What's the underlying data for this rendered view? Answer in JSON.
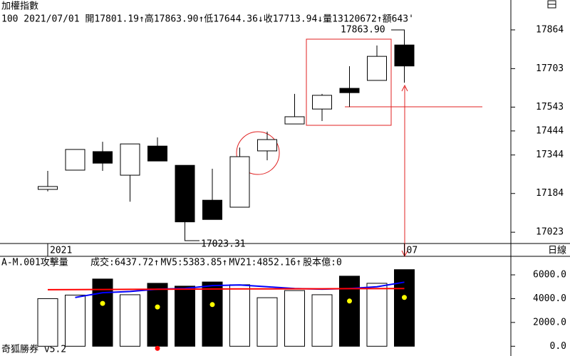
{
  "chart_data": [
    {
      "type": "candlestick",
      "title": "加權指數",
      "info": "100 2021/07/01 開17801.19↑高17863.90↑低17644.36↓收17713.94↓量13120672↑額643'",
      "categories": [
        "2021",
        null,
        null,
        null,
        null,
        null,
        null,
        null,
        null,
        null,
        null,
        null,
        null,
        "07"
      ],
      "open": [
        17201,
        17281,
        17358,
        17260,
        17381,
        17301,
        17156,
        17127,
        17361,
        17473,
        17535,
        17621,
        17654,
        17801.19
      ],
      "high": [
        17278,
        17367,
        17399,
        17390,
        17417,
        17301,
        17287,
        17375,
        17441,
        17598,
        17598,
        17713,
        17799,
        17863.9
      ],
      "low": [
        17193,
        17281,
        17278,
        17150,
        17319,
        17023.31,
        17076,
        17127,
        17322,
        17473,
        17485,
        17544,
        17654,
        17644.36
      ],
      "close": [
        17213,
        17367,
        17310,
        17390,
        17319,
        17066,
        17076,
        17337,
        17408,
        17503,
        17592,
        17603,
        17754,
        17713.94
      ],
      "annotations": [
        "17863.90",
        "17023.31"
      ],
      "period": "日線",
      "ylim": [
        16982,
        17929
      ],
      "yticks": [
        17864,
        17703,
        17543,
        17444,
        17344,
        17184,
        17023
      ]
    },
    {
      "type": "bar",
      "title": "A-M.001攻擊量",
      "series": [
        {
          "name": "成交:6437.72↑",
          "color": "#008000",
          "values": [
            4000,
            4300,
            5650,
            4330,
            5290,
            5050,
            5400,
            5170,
            4080,
            4680,
            4330,
            5890,
            5290,
            6437.72
          ]
        },
        {
          "name": "MV5:5383.85↑",
          "color": "#0000ff",
          "values": [
            null,
            4100,
            4500,
            4600,
            4800,
            4860,
            5100,
            5150,
            5000,
            4850,
            4800,
            4850,
            5000,
            5383.85
          ]
        },
        {
          "name": "MV21:4852.16↑",
          "color": "#ff0000",
          "values": [
            4750,
            4760,
            4770,
            4780,
            4790,
            4800,
            4810,
            4820,
            4820,
            4830,
            4830,
            4840,
            4845,
            4852.16
          ]
        }
      ],
      "note": {
        "text": "股本億:0",
        "color": "#ff00ff"
      },
      "markers": [
        {
          "color": "#ffff00",
          "values": [
            null,
            null,
            3600,
            null,
            3300,
            null,
            3500,
            null,
            null,
            null,
            null,
            3800,
            null,
            4100
          ]
        },
        {
          "color": "#ff0000",
          "values": [
            null,
            null,
            null,
            null,
            -180,
            null,
            null,
            null,
            null,
            null,
            null,
            null,
            null,
            null
          ]
        }
      ],
      "ylim": [
        -700,
        6600
      ],
      "yticks": [
        {
          "value": 6000,
          "label": "6000.0"
        },
        {
          "value": 4000,
          "label": "4000.0"
        },
        {
          "value": 2000,
          "label": "2000.0"
        },
        {
          "value": 0,
          "label": "0.0"
        }
      ]
    },
    {
      "type": "text",
      "footer": "奇狐勝券 v5.2"
    }
  ]
}
